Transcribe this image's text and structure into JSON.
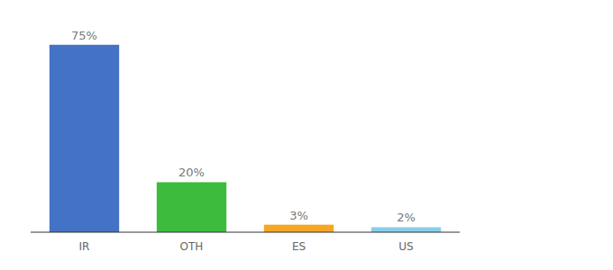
{
  "chart_data": {
    "type": "bar",
    "categories": [
      "IR",
      "OTH",
      "ES",
      "US"
    ],
    "values": [
      75,
      20,
      3,
      2
    ],
    "value_labels": [
      "75%",
      "20%",
      "3%",
      "2%"
    ],
    "data_labels": true,
    "colors": [
      "#4472c4",
      "#3dbb3d",
      "#f5a623",
      "#87ceeb"
    ],
    "ylim": [
      0,
      85
    ],
    "tick_labels": "x"
  }
}
